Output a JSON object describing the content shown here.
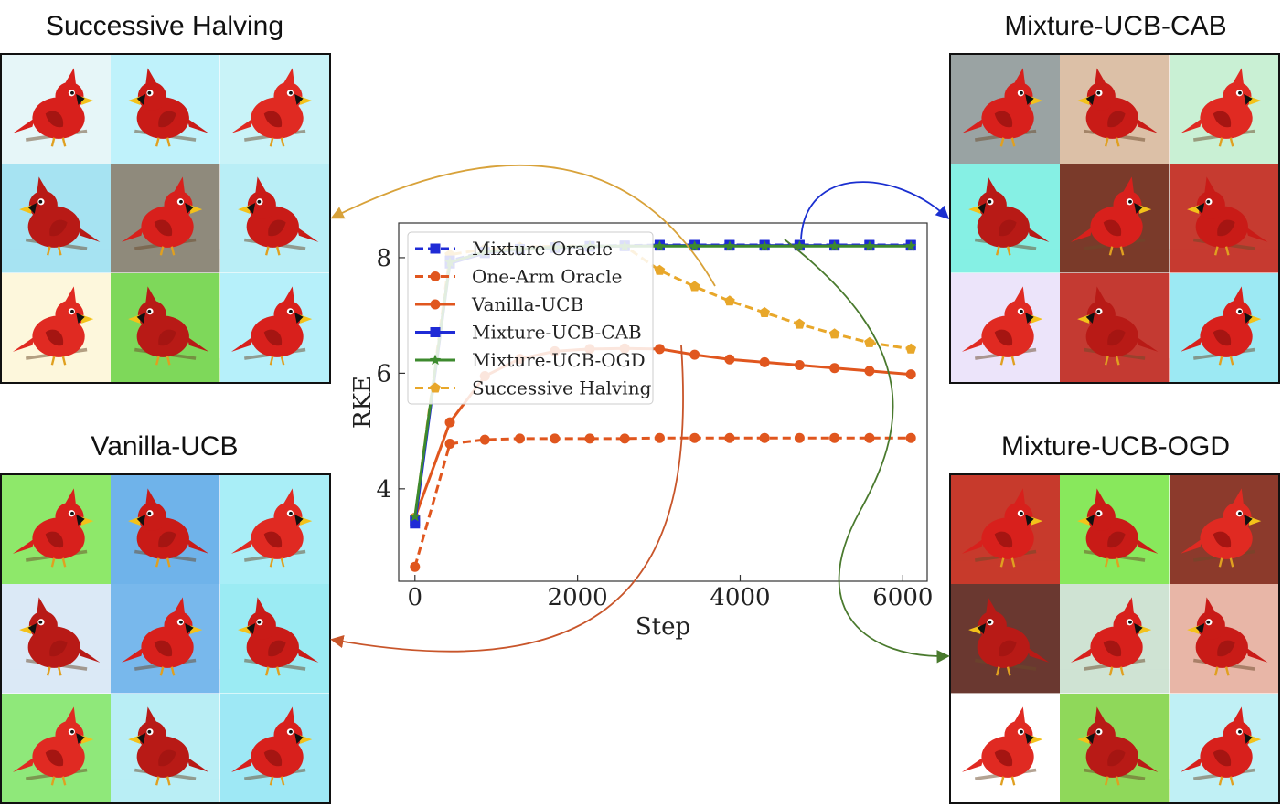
{
  "panels": {
    "successive_halving": {
      "title": "Successive Halving",
      "backgrounds": [
        "#e6f6f8",
        "#bff2fb",
        "#c9f3f8",
        "#a6e3f2",
        "#8f8a7c",
        "#b9eef6",
        "#fdf7dc",
        "#7ed85a",
        "#b6f0fa"
      ]
    },
    "vanilla_ucb": {
      "title": "Vanilla-UCB",
      "backgrounds": [
        "#8ee86a",
        "#6fb3ea",
        "#a9eef7",
        "#dbe9f6",
        "#78b8ec",
        "#9bebf3",
        "#8fe87a",
        "#b9eef5",
        "#9ee8f5"
      ]
    },
    "mixture_ucb_cab": {
      "title": "Mixture-UCB-CAB",
      "backgrounds": [
        "#9aa3a3",
        "#dcc0a7",
        "#c9f0d4",
        "#86f0e4",
        "#7a3a2a",
        "#c63b30",
        "#ece4fa",
        "#c43a32",
        "#9ce9f3"
      ]
    },
    "mixture_ucb_ogd": {
      "title": "Mixture-UCB-OGD",
      "backgrounds": [
        "#c73a2c",
        "#88e85c",
        "#8c3a2c",
        "#6a3830",
        "#cfe3d3",
        "#e8b6a7",
        "#ffffff",
        "#8fd85a",
        "#c0f0f5"
      ]
    }
  },
  "chart_data": {
    "type": "line",
    "xlabel": "Step",
    "ylabel": "RKE",
    "xlim": [
      -200,
      6300
    ],
    "ylim": [
      2.4,
      8.6
    ],
    "xticks": [
      0,
      2000,
      4000,
      6000
    ],
    "yticks": [
      4,
      6,
      8
    ],
    "grid": false,
    "legend_position": "top-left",
    "series": [
      {
        "name": "Mixture Oracle",
        "color": "#1f2bd6",
        "style": "dashed",
        "marker": "square",
        "x": [
          0,
          430,
          860,
          1290,
          1720,
          2150,
          2580,
          3010,
          3440,
          3870,
          4300,
          4730,
          5160,
          5590,
          6100
        ],
        "y": [
          3.45,
          7.95,
          8.1,
          8.15,
          8.18,
          8.2,
          8.21,
          8.22,
          8.22,
          8.22,
          8.22,
          8.22,
          8.22,
          8.22,
          8.22
        ]
      },
      {
        "name": "One-Arm Oracle",
        "color": "#e0561e",
        "style": "dashed",
        "marker": "circle",
        "x": [
          0,
          430,
          860,
          1290,
          1720,
          2150,
          2580,
          3010,
          3440,
          3870,
          4300,
          4730,
          5160,
          5590,
          6100
        ],
        "y": [
          2.65,
          4.78,
          4.85,
          4.87,
          4.87,
          4.87,
          4.87,
          4.88,
          4.88,
          4.88,
          4.88,
          4.88,
          4.88,
          4.88,
          4.88
        ]
      },
      {
        "name": "Vanilla-UCB",
        "color": "#e0561e",
        "style": "solid",
        "marker": "circle",
        "x": [
          0,
          430,
          860,
          1290,
          1720,
          2150,
          2580,
          3010,
          3440,
          3870,
          4300,
          4730,
          5160,
          5590,
          6100
        ],
        "y": [
          3.5,
          5.15,
          5.95,
          6.25,
          6.38,
          6.42,
          6.43,
          6.42,
          6.32,
          6.24,
          6.19,
          6.14,
          6.09,
          6.04,
          5.98
        ]
      },
      {
        "name": "Mixture-UCB-CAB",
        "color": "#1f2bd6",
        "style": "solid",
        "marker": "square",
        "x": [
          0,
          430,
          860,
          1290,
          1720,
          2150,
          2580,
          3010,
          3440,
          3870,
          4300,
          4730,
          5160,
          5590,
          6100
        ],
        "y": [
          3.4,
          7.9,
          8.08,
          8.14,
          8.17,
          8.19,
          8.2,
          8.21,
          8.21,
          8.21,
          8.21,
          8.21,
          8.21,
          8.21,
          8.21
        ]
      },
      {
        "name": "Mixture-UCB-OGD",
        "color": "#3d8a2e",
        "style": "solid",
        "marker": "star",
        "x": [
          0,
          430,
          860,
          1290,
          1720,
          2150,
          2580,
          3010,
          3440,
          3870,
          4300,
          4730,
          5160,
          5590,
          6100
        ],
        "y": [
          3.52,
          7.92,
          8.1,
          8.15,
          8.18,
          8.2,
          8.2,
          8.2,
          8.2,
          8.2,
          8.2,
          8.2,
          8.2,
          8.2,
          8.2
        ]
      },
      {
        "name": "Successive Halving",
        "color": "#e8a72a",
        "style": "dashed",
        "marker": "pentagon",
        "x": [
          0,
          430,
          860,
          1290,
          1720,
          2150,
          2580,
          3010,
          3440,
          3870,
          4300,
          4730,
          5160,
          5590,
          6100
        ],
        "y": [
          3.5,
          8.05,
          8.15,
          8.18,
          8.2,
          8.2,
          8.2,
          7.78,
          7.5,
          7.25,
          7.05,
          6.85,
          6.68,
          6.53,
          6.42
        ]
      }
    ]
  }
}
